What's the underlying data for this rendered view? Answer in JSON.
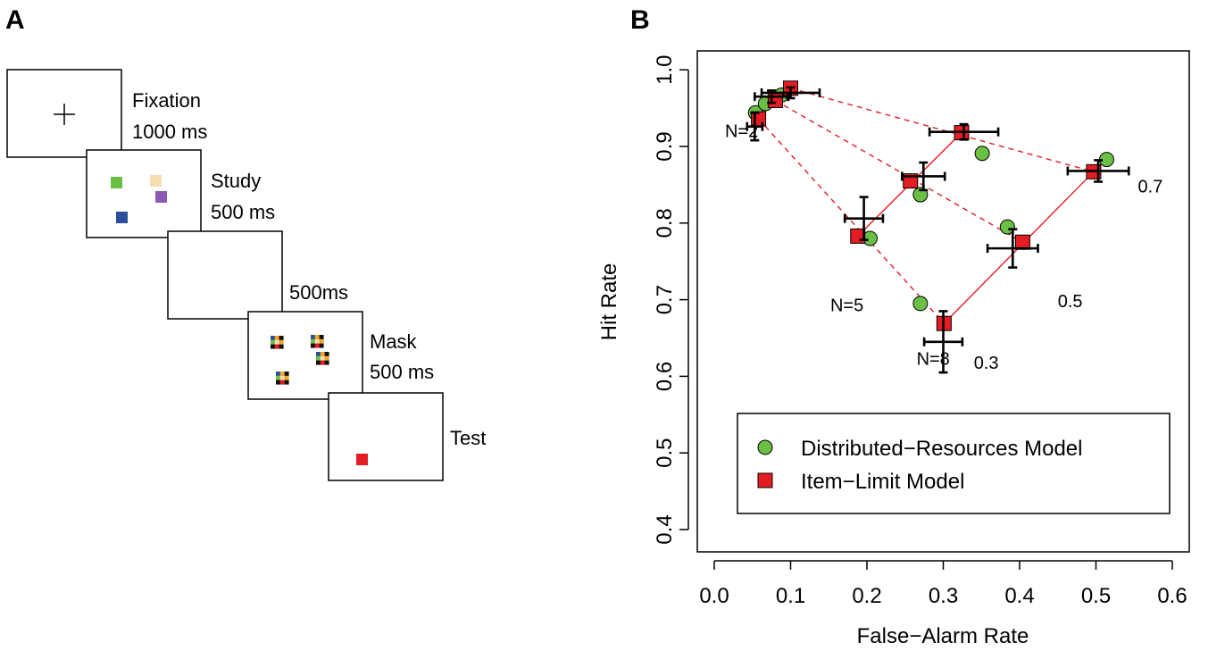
{
  "panel_a": {
    "label": "A",
    "frames": [
      {
        "name": "fixation",
        "title": "Fixation",
        "duration": "1000 ms"
      },
      {
        "name": "study",
        "title": "Study",
        "duration": "500 ms",
        "squares": [
          {
            "color": "#6cbf45"
          },
          {
            "color": "#f6dcb1"
          },
          {
            "color": "#8e59b2"
          },
          {
            "color": "#2c4f9c"
          }
        ]
      },
      {
        "name": "blank",
        "title": "",
        "duration": "500ms"
      },
      {
        "name": "mask",
        "title": "Mask",
        "duration": "500 ms"
      },
      {
        "name": "test",
        "title": "Test",
        "duration": "",
        "squares": [
          {
            "color": "#e41c23"
          }
        ]
      }
    ],
    "mask_colors": [
      "#2c4f9c",
      "#f5a623",
      "#111111",
      "#6cbf45",
      "#f6dcb1",
      "#e41c23"
    ]
  },
  "chart_data": {
    "panel_label": "B",
    "type": "scatter",
    "xlabel": "False−Alarm Rate",
    "ylabel": "Hit Rate",
    "xlim": [
      0.0,
      0.6
    ],
    "ylim": [
      0.4,
      1.0
    ],
    "xticks": [
      "0.0",
      "0.1",
      "0.2",
      "0.3",
      "0.4",
      "0.5",
      "0.6"
    ],
    "yticks": [
      "0.4",
      "0.5",
      "0.6",
      "0.7",
      "0.8",
      "0.9",
      "1.0"
    ],
    "legend": {
      "position": "bottom-right",
      "entries": [
        {
          "label": "Distributed−Resources Model",
          "marker": "circle",
          "color": "#6cbf45"
        },
        {
          "label": "Item−Limit Model",
          "marker": "square",
          "color": "#e41c23"
        }
      ]
    },
    "series": [
      {
        "name": "Distributed−Resources Model",
        "marker": "circle",
        "color": "#6cbf45",
        "points": [
          {
            "set_size": 2,
            "x": 0.054,
            "y": 0.944
          },
          {
            "set_size": 2,
            "x": 0.067,
            "y": 0.956
          },
          {
            "set_size": 2,
            "x": 0.088,
            "y": 0.967
          },
          {
            "set_size": 5,
            "x": 0.204,
            "y": 0.78
          },
          {
            "set_size": 5,
            "x": 0.27,
            "y": 0.837
          },
          {
            "set_size": 5,
            "x": 0.351,
            "y": 0.891
          },
          {
            "set_size": 8,
            "x": 0.27,
            "y": 0.695
          },
          {
            "set_size": 8,
            "x": 0.384,
            "y": 0.795
          },
          {
            "set_size": 8,
            "x": 0.514,
            "y": 0.883
          }
        ]
      },
      {
        "name": "Item−Limit Model",
        "marker": "square",
        "color": "#e41c23",
        "points": [
          {
            "set_size": 2,
            "x": 0.058,
            "y": 0.936
          },
          {
            "set_size": 2,
            "x": 0.08,
            "y": 0.96
          },
          {
            "set_size": 2,
            "x": 0.1,
            "y": 0.976
          },
          {
            "set_size": 5,
            "x": 0.188,
            "y": 0.783
          },
          {
            "set_size": 5,
            "x": 0.257,
            "y": 0.855
          },
          {
            "set_size": 5,
            "x": 0.324,
            "y": 0.918
          },
          {
            "set_size": 8,
            "x": 0.301,
            "y": 0.669
          },
          {
            "set_size": 8,
            "x": 0.404,
            "y": 0.775
          },
          {
            "set_size": 8,
            "x": 0.497,
            "y": 0.867
          }
        ]
      }
    ],
    "observed": [
      {
        "x": 0.053,
        "y": 0.926,
        "xerr": 0.01,
        "yerr": 0.018
      },
      {
        "x": 0.075,
        "y": 0.965,
        "xerr": 0.022,
        "yerr": 0.008
      },
      {
        "x": 0.1,
        "y": 0.97,
        "xerr": 0.038,
        "yerr": 0.007
      },
      {
        "x": 0.196,
        "y": 0.806,
        "xerr": 0.025,
        "yerr": 0.028
      },
      {
        "x": 0.274,
        "y": 0.861,
        "xerr": 0.028,
        "yerr": 0.018
      },
      {
        "x": 0.327,
        "y": 0.919,
        "xerr": 0.045,
        "yerr": 0.01
      },
      {
        "x": 0.3,
        "y": 0.645,
        "xerr": 0.025,
        "yerr": 0.04
      },
      {
        "x": 0.391,
        "y": 0.767,
        "xerr": 0.033,
        "yerr": 0.025
      },
      {
        "x": 0.503,
        "y": 0.868,
        "xerr": 0.04,
        "yerr": 0.014
      }
    ],
    "solid_lines": [
      {
        "from": [
          0.188,
          0.783
        ],
        "to": [
          0.324,
          0.918
        ]
      },
      {
        "from": [
          0.301,
          0.669
        ],
        "to": [
          0.497,
          0.867
        ]
      }
    ],
    "dashed_lines": [
      {
        "from": [
          0.058,
          0.936
        ],
        "to": [
          0.301,
          0.669
        ]
      },
      {
        "from": [
          0.08,
          0.96
        ],
        "to": [
          0.404,
          0.775
        ]
      },
      {
        "from": [
          0.1,
          0.976
        ],
        "to": [
          0.497,
          0.867
        ]
      }
    ],
    "annotations": [
      {
        "text": "N=2",
        "x": 0.014,
        "y": 0.912
      },
      {
        "text": "N=5",
        "x": 0.152,
        "y": 0.685
      },
      {
        "text": "N=8",
        "x": 0.265,
        "y": 0.615
      },
      {
        "text": "0.3",
        "x": 0.34,
        "y": 0.61
      },
      {
        "text": "0.5",
        "x": 0.45,
        "y": 0.69
      },
      {
        "text": "0.7",
        "x": 0.555,
        "y": 0.84
      }
    ]
  }
}
